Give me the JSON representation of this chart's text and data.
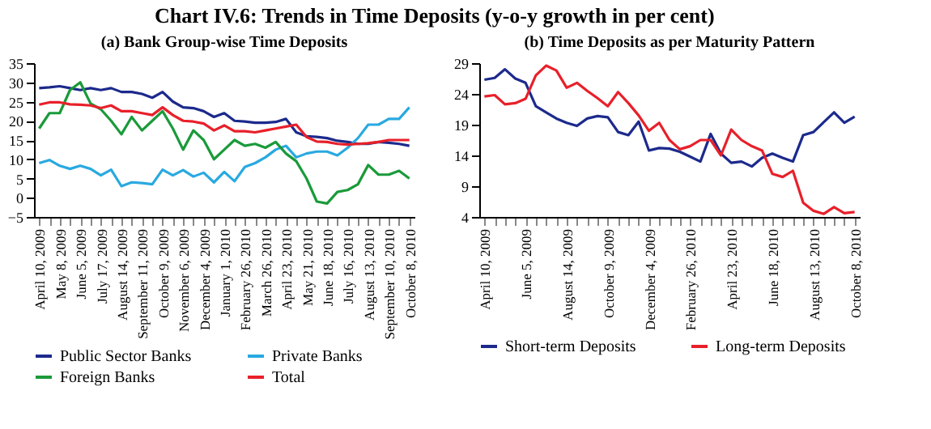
{
  "chart_data": [
    {
      "type": "line",
      "title": "Chart IV.6: Trends in Time Deposits (y-o-y growth in per cent)",
      "subtitle": "(a) Bank Group-wise Time Deposits",
      "categories": [
        "April 10, 2009",
        null,
        "May 8, 2009",
        null,
        "June 5, 2009",
        null,
        "July 17, 2009",
        null,
        "August 14, 2009",
        null,
        "September 11, 2009",
        null,
        "October 9, 2009",
        null,
        "November 6, 2009",
        null,
        "December 4, 2009",
        null,
        "January 1, 2010",
        null,
        "February 26, 2010",
        null,
        "March 26, 2010",
        null,
        "April 23, 2010",
        null,
        "May 21, 2010",
        null,
        "June 18, 2010",
        null,
        "July 16, 2010",
        null,
        "August 13, 2010",
        null,
        "September 10, 2010",
        null,
        "October 8, 2010"
      ],
      "series": [
        {
          "name": "Public Sector Banks",
          "color": "#1c2a8c",
          "values": [
            28.5,
            28.7,
            29,
            28.5,
            28,
            28.5,
            28,
            28.5,
            27.5,
            27.5,
            27,
            26,
            27.5,
            25,
            23.5,
            23.3,
            22.5,
            21,
            22,
            20,
            19.8,
            19.5,
            19.5,
            19.7,
            20.5,
            17,
            16,
            15.8,
            15.5,
            14.8,
            14.5,
            14,
            14,
            14.5,
            14.3,
            14,
            13.5
          ]
        },
        {
          "name": "Private Banks",
          "color": "#29a9e0",
          "values": [
            9,
            9.8,
            8.3,
            7.5,
            8.3,
            7.5,
            5.8,
            7.3,
            3,
            4,
            3.8,
            3.5,
            7.3,
            5.8,
            7.2,
            5.5,
            6.5,
            4,
            6.7,
            4.3,
            8,
            9,
            10.5,
            12.5,
            13.5,
            10.5,
            11.5,
            12,
            12,
            11,
            13,
            15.5,
            19,
            19,
            20.5,
            20.5,
            23.5
          ]
        },
        {
          "name": "Foreign Banks",
          "color": "#1a9a3a",
          "values": [
            18,
            22,
            22,
            28,
            30,
            24.5,
            23,
            20,
            16.5,
            21,
            17.5,
            20,
            22.5,
            18,
            12.5,
            17.5,
            15,
            10,
            12.5,
            15,
            13.5,
            14,
            13,
            14.5,
            11.5,
            9.5,
            5,
            -1,
            -1.5,
            1.5,
            2,
            3.5,
            8.5,
            6,
            6,
            7,
            5
          ]
        },
        {
          "name": "Total",
          "color": "#e8202a",
          "values": [
            24.2,
            24.8,
            24.8,
            24.3,
            24.2,
            24,
            23.3,
            24,
            22.5,
            22.5,
            22,
            21.5,
            23.5,
            21.5,
            20,
            19.8,
            19.3,
            17.5,
            18.8,
            17.3,
            17.3,
            17,
            17.5,
            18,
            18.5,
            19,
            15.8,
            14.6,
            14.5,
            14,
            13.8,
            14,
            14.2,
            14.5,
            15,
            15,
            15
          ]
        }
      ],
      "ylim": [
        -5,
        35
      ],
      "yticks": [
        -5,
        0,
        5,
        10,
        15,
        20,
        25,
        30,
        35
      ],
      "grid": false,
      "legend": "bottom",
      "marker": "none",
      "line_style": "solid"
    },
    {
      "type": "line",
      "title": "(b) Time Deposits as per Maturity Pattern",
      "categories": [
        "April 10, 2009",
        null,
        null,
        null,
        "June 5, 2009",
        null,
        null,
        null,
        "August 14, 2009",
        null,
        null,
        null,
        "October 9, 2009",
        null,
        null,
        null,
        "December 4, 2009",
        null,
        null,
        null,
        "February 26, 2010",
        null,
        null,
        null,
        "April 23, 2010",
        null,
        null,
        null,
        "June 18, 2010",
        null,
        null,
        null,
        "August 13, 2010",
        null,
        null,
        null,
        "October 8, 2010"
      ],
      "series": [
        {
          "name": "Short-term Deposits",
          "color": "#1c2a8c",
          "values": [
            26.3,
            26.6,
            28,
            26.5,
            25.8,
            22,
            21,
            20,
            19.3,
            18.8,
            20,
            20.4,
            20.2,
            17.8,
            17.3,
            19.5,
            14.8,
            15.2,
            15.1,
            14.6,
            13.8,
            13,
            17.5,
            14.3,
            12.8,
            13,
            12.2,
            13.6,
            14.3,
            13.6,
            13,
            17.3,
            17.8,
            19.4,
            21,
            19.3,
            20.3
          ]
        },
        {
          "name": "Long-term Deposits",
          "color": "#e8202a",
          "values": [
            23.6,
            23.8,
            22.3,
            22.5,
            23.2,
            27,
            28.6,
            27.8,
            25,
            25.8,
            24.5,
            23.3,
            22,
            24.3,
            22.5,
            20.5,
            18,
            19.3,
            16.5,
            15,
            15.5,
            16.5,
            16.5,
            14,
            18.2,
            16.5,
            15.5,
            14.8,
            11,
            10.5,
            11.5,
            6.3,
            5,
            4.5,
            5.6,
            4.6,
            4.8
          ]
        }
      ],
      "ylim": [
        4,
        29
      ],
      "yticks": [
        4,
        9,
        14,
        19,
        24,
        29
      ],
      "grid": false,
      "legend": "bottom",
      "marker": "none",
      "line_style": "solid"
    }
  ]
}
